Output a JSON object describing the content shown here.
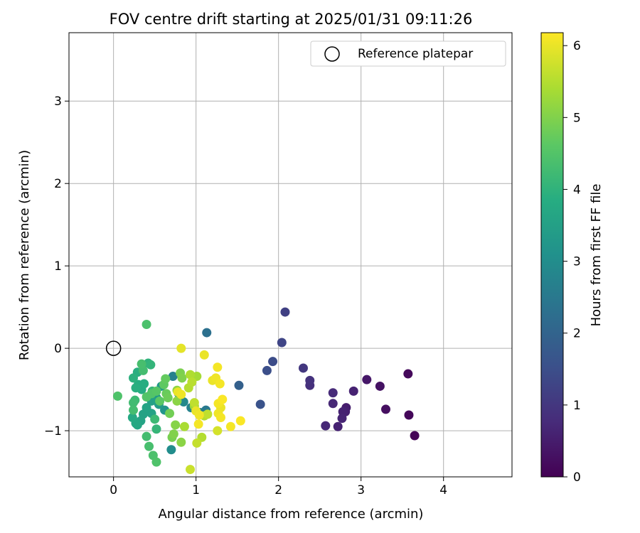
{
  "chart_data": {
    "type": "scatter",
    "title": "FOV centre drift starting at 2025/01/31 09:11:26",
    "xlabel": "Angular distance from reference (arcmin)",
    "ylabel": "Rotation from reference (arcmin)",
    "xlim": [
      -0.54,
      4.83
    ],
    "ylim": [
      -1.56,
      3.83
    ],
    "xticks": [
      0,
      1,
      2,
      3,
      4
    ],
    "yticks": [
      -1,
      0,
      1,
      2,
      3
    ],
    "grid": true,
    "legend": {
      "position": "top-right",
      "entries": [
        "Reference platepar"
      ]
    },
    "reference_point": {
      "label": "Reference platepar",
      "x": 0,
      "y": 0,
      "marker": "open-circle"
    },
    "colorbar": {
      "label": "Hours from first FF file",
      "min": 0,
      "max": 6.18,
      "ticks": [
        0,
        1,
        2,
        3,
        4,
        5,
        6
      ],
      "colormap": "viridis"
    },
    "points": [
      {
        "x": 3.65,
        "y": -1.06,
        "h": 0.05
      },
      {
        "x": 3.58,
        "y": -0.81,
        "h": 0.1
      },
      {
        "x": 3.57,
        "y": -0.31,
        "h": 0.15
      },
      {
        "x": 3.3,
        "y": -0.74,
        "h": 0.25
      },
      {
        "x": 3.23,
        "y": -0.46,
        "h": 0.3
      },
      {
        "x": 3.07,
        "y": -0.38,
        "h": 0.4
      },
      {
        "x": 2.91,
        "y": -0.52,
        "h": 0.6
      },
      {
        "x": 2.82,
        "y": -0.72,
        "h": 0.5
      },
      {
        "x": 2.81,
        "y": -0.77,
        "h": 0.55
      },
      {
        "x": 2.78,
        "y": -0.77,
        "h": 0.6
      },
      {
        "x": 2.77,
        "y": -0.85,
        "h": 0.65
      },
      {
        "x": 2.72,
        "y": -0.95,
        "h": 0.6
      },
      {
        "x": 2.66,
        "y": -0.67,
        "h": 0.7
      },
      {
        "x": 2.66,
        "y": -0.54,
        "h": 0.75
      },
      {
        "x": 2.57,
        "y": -0.94,
        "h": 0.7
      },
      {
        "x": 2.38,
        "y": -0.45,
        "h": 0.85
      },
      {
        "x": 2.38,
        "y": -0.39,
        "h": 0.9
      },
      {
        "x": 2.3,
        "y": -0.24,
        "h": 1.0
      },
      {
        "x": 2.08,
        "y": 0.44,
        "h": 1.2
      },
      {
        "x": 2.04,
        "y": 0.07,
        "h": 1.3
      },
      {
        "x": 1.93,
        "y": -0.16,
        "h": 1.45
      },
      {
        "x": 1.86,
        "y": -0.27,
        "h": 1.5
      },
      {
        "x": 1.78,
        "y": -0.68,
        "h": 1.6
      },
      {
        "x": 1.52,
        "y": -0.45,
        "h": 1.9
      },
      {
        "x": 1.13,
        "y": 0.19,
        "h": 2.3
      },
      {
        "x": 1.12,
        "y": -0.75,
        "h": 2.5
      },
      {
        "x": 1.05,
        "y": -0.78,
        "h": 2.6
      },
      {
        "x": 0.94,
        "y": -0.72,
        "h": 2.75
      },
      {
        "x": 0.85,
        "y": -0.65,
        "h": 2.9
      },
      {
        "x": 0.72,
        "y": -0.34,
        "h": 2.7
      },
      {
        "x": 0.7,
        "y": -1.23,
        "h": 3.0
      },
      {
        "x": 0.79,
        "y": -0.55,
        "h": 3.05
      },
      {
        "x": 0.62,
        "y": -0.75,
        "h": 3.2
      },
      {
        "x": 0.58,
        "y": -0.46,
        "h": 3.3
      },
      {
        "x": 0.55,
        "y": -0.68,
        "h": 3.4
      },
      {
        "x": 0.52,
        "y": -0.6,
        "h": 3.35
      },
      {
        "x": 0.46,
        "y": -0.64,
        "h": 3.5
      },
      {
        "x": 0.46,
        "y": -0.79,
        "h": 3.55
      },
      {
        "x": 0.4,
        "y": -0.72,
        "h": 3.6
      },
      {
        "x": 0.36,
        "y": -0.8,
        "h": 3.55
      },
      {
        "x": 0.33,
        "y": -0.88,
        "h": 3.6
      },
      {
        "x": 0.29,
        "y": -0.93,
        "h": 3.65
      },
      {
        "x": 0.27,
        "y": -0.91,
        "h": 3.7
      },
      {
        "x": 0.23,
        "y": -0.84,
        "h": 3.75
      },
      {
        "x": 0.34,
        "y": -0.5,
        "h": 3.8
      },
      {
        "x": 0.3,
        "y": -0.44,
        "h": 3.85
      },
      {
        "x": 0.27,
        "y": -0.48,
        "h": 3.9
      },
      {
        "x": 0.24,
        "y": -0.36,
        "h": 3.95
      },
      {
        "x": 0.29,
        "y": -0.29,
        "h": 3.9
      },
      {
        "x": 0.37,
        "y": -0.43,
        "h": 3.85
      },
      {
        "x": 0.42,
        "y": -0.18,
        "h": 4.0
      },
      {
        "x": 0.45,
        "y": -0.2,
        "h": 4.05
      },
      {
        "x": 0.47,
        "y": -0.52,
        "h": 4.1
      },
      {
        "x": 0.5,
        "y": -0.86,
        "h": 4.2
      },
      {
        "x": 0.52,
        "y": -0.98,
        "h": 4.1
      },
      {
        "x": 0.4,
        "y": -1.07,
        "h": 4.3
      },
      {
        "x": 0.43,
        "y": -1.19,
        "h": 4.35
      },
      {
        "x": 0.48,
        "y": -1.3,
        "h": 4.4
      },
      {
        "x": 0.52,
        "y": -1.38,
        "h": 4.45
      },
      {
        "x": 0.26,
        "y": -0.63,
        "h": 4.2
      },
      {
        "x": 0.24,
        "y": -0.66,
        "h": 4.25
      },
      {
        "x": 0.24,
        "y": -0.75,
        "h": 4.3
      },
      {
        "x": 0.36,
        "y": -0.27,
        "h": 4.3
      },
      {
        "x": 0.34,
        "y": -0.19,
        "h": 4.35
      },
      {
        "x": 0.4,
        "y": 0.29,
        "h": 4.4
      },
      {
        "x": 0.05,
        "y": -0.58,
        "h": 4.45
      },
      {
        "x": 0.4,
        "y": -0.59,
        "h": 4.5
      },
      {
        "x": 0.46,
        "y": -0.55,
        "h": 4.5
      },
      {
        "x": 0.52,
        "y": -0.52,
        "h": 4.55
      },
      {
        "x": 0.56,
        "y": -0.64,
        "h": 4.6
      },
      {
        "x": 0.61,
        "y": -0.44,
        "h": 4.65
      },
      {
        "x": 0.63,
        "y": -0.37,
        "h": 4.7
      },
      {
        "x": 0.64,
        "y": -0.55,
        "h": 4.75
      },
      {
        "x": 0.66,
        "y": -0.6,
        "h": 4.8
      },
      {
        "x": 0.68,
        "y": -0.79,
        "h": 4.85
      },
      {
        "x": 0.71,
        "y": -1.08,
        "h": 4.9
      },
      {
        "x": 0.73,
        "y": -1.04,
        "h": 5.0
      },
      {
        "x": 0.75,
        "y": -0.93,
        "h": 5.05
      },
      {
        "x": 0.77,
        "y": -0.64,
        "h": 5.1
      },
      {
        "x": 0.77,
        "y": -0.51,
        "h": 5.15
      },
      {
        "x": 0.81,
        "y": -0.3,
        "h": 4.95
      },
      {
        "x": 0.83,
        "y": -0.36,
        "h": 5.0
      },
      {
        "x": 0.82,
        "y": -1.14,
        "h": 5.1
      },
      {
        "x": 0.86,
        "y": -0.95,
        "h": 5.4
      },
      {
        "x": 0.93,
        "y": -0.32,
        "h": 5.45
      },
      {
        "x": 0.91,
        "y": -0.48,
        "h": 5.5
      },
      {
        "x": 0.95,
        "y": -0.41,
        "h": 5.55
      },
      {
        "x": 0.98,
        "y": -0.66,
        "h": 5.6
      },
      {
        "x": 0.98,
        "y": -0.7,
        "h": 5.3
      },
      {
        "x": 1.01,
        "y": -0.34,
        "h": 5.35
      },
      {
        "x": 1.01,
        "y": -1.15,
        "h": 5.65
      },
      {
        "x": 1.07,
        "y": -1.08,
        "h": 5.5
      },
      {
        "x": 1.1,
        "y": -0.82,
        "h": 5.5
      },
      {
        "x": 1.14,
        "y": -0.8,
        "h": 5.6
      },
      {
        "x": 0.93,
        "y": -1.47,
        "h": 5.7
      },
      {
        "x": 0.82,
        "y": 0.0,
        "h": 5.95
      },
      {
        "x": 0.78,
        "y": -0.53,
        "h": 6.0
      },
      {
        "x": 0.82,
        "y": -0.56,
        "h": 6.05
      },
      {
        "x": 1.03,
        "y": -0.92,
        "h": 6.1
      },
      {
        "x": 1.04,
        "y": -0.81,
        "h": 6.05
      },
      {
        "x": 1.0,
        "y": -0.76,
        "h": 6.0
      },
      {
        "x": 1.1,
        "y": -0.08,
        "h": 6.0
      },
      {
        "x": 1.2,
        "y": -0.39,
        "h": 6.0
      },
      {
        "x": 1.24,
        "y": -0.36,
        "h": 6.05
      },
      {
        "x": 1.26,
        "y": -0.23,
        "h": 6.1
      },
      {
        "x": 1.29,
        "y": -0.43,
        "h": 6.1
      },
      {
        "x": 1.32,
        "y": -0.62,
        "h": 6.15
      },
      {
        "x": 1.27,
        "y": -0.67,
        "h": 6.1
      },
      {
        "x": 1.3,
        "y": -0.72,
        "h": 6.0
      },
      {
        "x": 1.27,
        "y": -0.79,
        "h": 6.05
      },
      {
        "x": 1.3,
        "y": -0.84,
        "h": 6.1
      },
      {
        "x": 1.26,
        "y": -1.0,
        "h": 5.8
      },
      {
        "x": 1.42,
        "y": -0.95,
        "h": 6.1
      },
      {
        "x": 1.54,
        "y": -0.88,
        "h": 6.15
      }
    ]
  }
}
